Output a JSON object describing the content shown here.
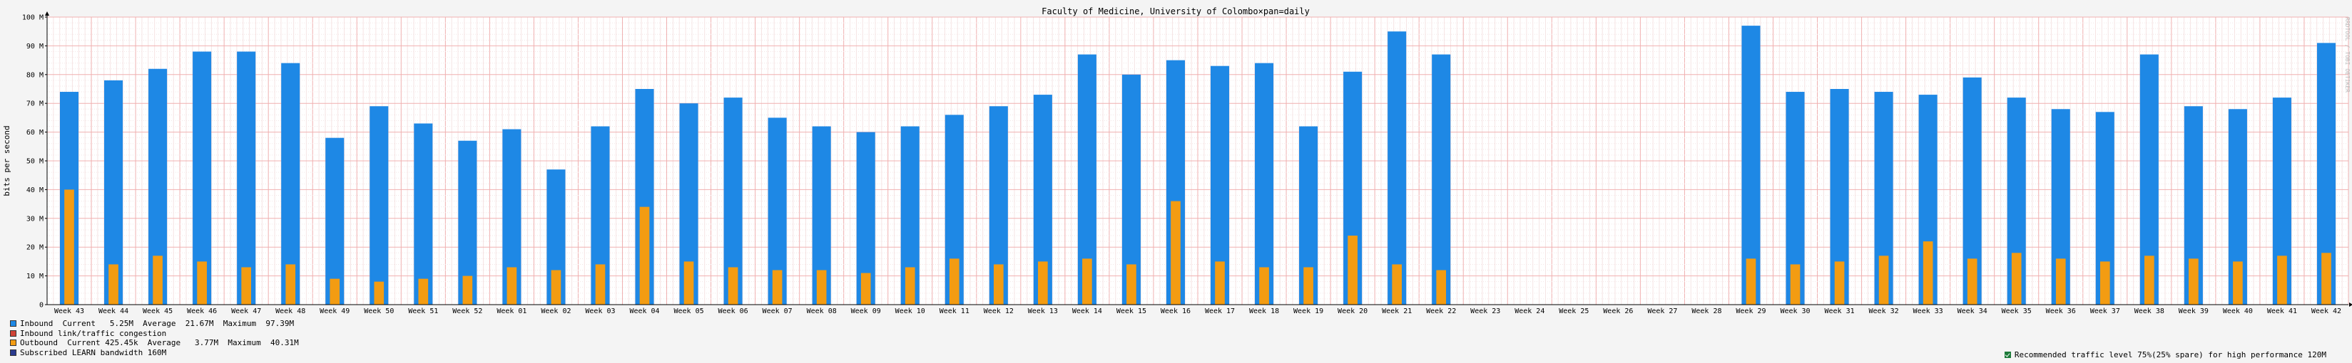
{
  "chart_data": {
    "type": "bar",
    "title": "Faculty of Medicine, University of Colombo×pan=daily",
    "ylabel": "bits per second",
    "xlabel": "",
    "ylim": [
      0,
      100
    ],
    "y_unit": "M",
    "y_ticks": [
      {
        "value": 0,
        "label": "0"
      },
      {
        "value": 10,
        "label": "10 M"
      },
      {
        "value": 20,
        "label": "20 M"
      },
      {
        "value": 30,
        "label": "30 M"
      },
      {
        "value": 40,
        "label": "40 M"
      },
      {
        "value": 50,
        "label": "50 M"
      },
      {
        "value": 60,
        "label": "60 M"
      },
      {
        "value": 70,
        "label": "70 M"
      },
      {
        "value": 80,
        "label": "80 M"
      },
      {
        "value": 90,
        "label": "90 M"
      },
      {
        "value": 100,
        "label": "100 M"
      }
    ],
    "categories": [
      "Week 43",
      "Week 44",
      "Week 45",
      "Week 46",
      "Week 47",
      "Week 48",
      "Week 49",
      "Week 50",
      "Week 51",
      "Week 52",
      "Week 01",
      "Week 02",
      "Week 03",
      "Week 04",
      "Week 05",
      "Week 06",
      "Week 07",
      "Week 08",
      "Week 09",
      "Week 10",
      "Week 11",
      "Week 12",
      "Week 13",
      "Week 14",
      "Week 15",
      "Week 16",
      "Week 17",
      "Week 18",
      "Week 19",
      "Week 20",
      "Week 21",
      "Week 22",
      "Week 23",
      "Week 24",
      "Week 25",
      "Week 26",
      "Week 27",
      "Week 28",
      "Week 29",
      "Week 30",
      "Week 31",
      "Week 32",
      "Week 33",
      "Week 34",
      "Week 35",
      "Week 36",
      "Week 37",
      "Week 38",
      "Week 39",
      "Week 40",
      "Week 41",
      "Week 42"
    ],
    "series": [
      {
        "name": "Inbound",
        "color": "#1e88e5",
        "values": [
          74,
          78,
          82,
          88,
          88,
          84,
          58,
          69,
          63,
          57,
          61,
          47,
          62,
          75,
          70,
          72,
          65,
          62,
          60,
          62,
          66,
          69,
          73,
          87,
          80,
          85,
          83,
          84,
          62,
          81,
          95,
          87,
          0,
          0,
          0,
          0,
          0,
          0,
          97,
          74,
          75,
          74,
          73,
          79,
          72,
          68,
          67,
          87,
          69,
          68,
          72,
          91
        ]
      },
      {
        "name": "Outbound",
        "color": "#f39c12",
        "values": [
          40,
          14,
          17,
          15,
          13,
          14,
          9,
          8,
          9,
          10,
          13,
          12,
          14,
          34,
          15,
          13,
          12,
          12,
          11,
          13,
          16,
          14,
          15,
          16,
          14,
          36,
          15,
          13,
          13,
          24,
          14,
          12,
          0,
          0,
          0,
          0,
          0,
          0,
          16,
          14,
          15,
          17,
          22,
          16,
          18,
          16,
          15,
          17,
          16,
          15,
          17,
          18
        ]
      }
    ],
    "grid": true,
    "legend_position": "bottom-left"
  },
  "watermark": "RRDTOOL / TOBI OETIKER",
  "legend": {
    "items": [
      {
        "color": "#1e88e5",
        "text": "Inbound  Current   5.25M  Average  21.67M  Maximum  97.39M"
      },
      {
        "color": "#d04437",
        "text": "Inbound link/traffic congestion"
      },
      {
        "color": "#f39c12",
        "text": "Outbound  Current 425.45k  Average   3.77M  Maximum  40.31M"
      },
      {
        "color": "#2a3b8f",
        "text": "Subscribed LEARN bandwidth 160M"
      }
    ]
  },
  "recommendation": {
    "text": "Recommended traffic level 75%(25% spare) for high performance 120M",
    "color": "#1e7b3a"
  }
}
